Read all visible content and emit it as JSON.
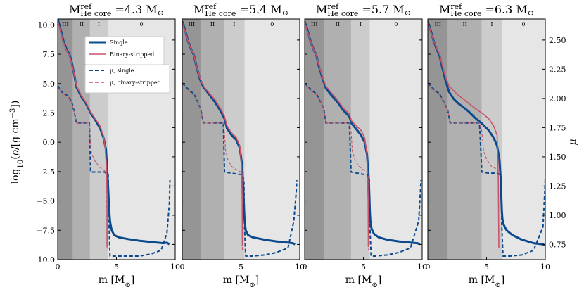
{
  "chart_data": {
    "type": "line",
    "layout": "1x4 panels, shared y axis (left) and twin right axis",
    "ylabel_left": "log10(ρ / [g cm^-3])",
    "ylabel_right": "μ",
    "xlabel": "m [M_⊙]",
    "xlabel_parts": {
      "main": "m [M",
      "sub": "⊙",
      "close": "]"
    },
    "ylim_left": [
      -10,
      10.5
    ],
    "ylim_right": [
      0.62,
      2.68
    ],
    "xlim": [
      0,
      10
    ],
    "x_ticks": [
      0,
      5,
      10
    ],
    "y_ticks_left": [
      -10.0,
      -7.5,
      -5.0,
      -2.5,
      0.0,
      2.5,
      5.0,
      7.5,
      10.0
    ],
    "y_ticks_left_labels": [
      "−10.0",
      "−7.5",
      "−5.0",
      "−2.5",
      "0.0",
      "2.5",
      "5.0",
      "7.5",
      "10.0"
    ],
    "y_ticks_right": [
      0.75,
      1.0,
      1.25,
      1.5,
      1.75,
      2.0,
      2.25,
      2.5
    ],
    "y_ticks_right_labels": [
      "0.75",
      "1.00",
      "1.25",
      "1.50",
      "1.75",
      "2.00",
      "2.25",
      "2.50"
    ],
    "zone_labels": [
      "III",
      "II",
      "I",
      "0"
    ],
    "zone_colors": [
      "#959595",
      "#b0b0b0",
      "#cccccc",
      "#e6e6e6"
    ],
    "legend": {
      "placement": "upper-right of first panel",
      "entries": [
        {
          "label": "Single",
          "color": "#0b4a8c",
          "style": "solid-thick"
        },
        {
          "label": "Binary-stripped",
          "color": "#c9546a",
          "style": "solid"
        }
      ],
      "entries_mu": [
        {
          "label": "μ, single",
          "color": "#0b4a8c",
          "style": "dashed"
        },
        {
          "label": "μ, binary-stripped",
          "color": "#c9546a",
          "style": "dashed-thin"
        }
      ]
    },
    "panels": [
      {
        "title_main": "M",
        "title_sup": "ref",
        "title_sub": "He core",
        "title_value": "=4.3 M",
        "title_odot": "⊙",
        "zone_edges": [
          0,
          1.3,
          2.75,
          4.25,
          10
        ],
        "series": [
          {
            "name": "Single",
            "axis": "left",
            "x": [
              0,
              0.2,
              0.5,
              0.8,
              1.0,
              1.2,
              1.4,
              1.6,
              2.0,
              2.4,
              2.8,
              3.2,
              3.6,
              3.9,
              4.1,
              4.2,
              4.3,
              4.35,
              4.4,
              4.45,
              4.5,
              4.6,
              4.8,
              5.2,
              6,
              7,
              8,
              9,
              9.3,
              9.5
            ],
            "y": [
              10.5,
              9.8,
              8.6,
              7.8,
              7.5,
              6.8,
              5.8,
              4.7,
              3.9,
              3.3,
              2.5,
              1.9,
              1.2,
              0.4,
              -0.6,
              -2.0,
              -4.0,
              -5.0,
              -6.0,
              -6.7,
              -7.0,
              -7.5,
              -7.9,
              -8.1,
              -8.25,
              -8.4,
              -8.5,
              -8.6,
              -8.55,
              -8.7
            ]
          },
          {
            "name": "Binary-stripped",
            "axis": "left",
            "x": [
              0,
              0.2,
              0.5,
              0.8,
              1.0,
              1.2,
              1.4,
              1.6,
              2.0,
              2.4,
              2.8,
              3.2,
              3.6,
              3.9,
              4.05,
              4.15,
              4.2,
              4.2
            ],
            "y": [
              10.3,
              9.6,
              8.5,
              7.7,
              7.4,
              6.7,
              5.8,
              4.8,
              4.0,
              3.4,
              2.6,
              2.0,
              1.4,
              0.5,
              -0.5,
              -2.0,
              -4.5,
              -8.9
            ]
          },
          {
            "name": "μ, single",
            "axis": "right",
            "x": [
              0,
              0.3,
              0.6,
              0.9,
              1.2,
              1.35,
              1.6,
              2.0,
              2.5,
              2.7,
              2.8,
              3.4,
              4.0,
              4.1,
              4.3,
              4.35,
              4.45,
              4.6,
              5,
              6,
              7,
              8,
              8.8,
              9.3,
              9.5,
              9.55
            ],
            "y": [
              2.11,
              2.06,
              2.04,
              2.02,
              1.97,
              1.91,
              1.79,
              1.79,
              1.79,
              1.79,
              1.37,
              1.37,
              1.37,
              1.36,
              1.35,
              1.0,
              0.65,
              0.65,
              0.65,
              0.65,
              0.65,
              0.67,
              0.7,
              0.85,
              1.1,
              1.3
            ]
          },
          {
            "name": "μ, binary-stripped",
            "axis": "right",
            "x": [
              0,
              0.3,
              0.6,
              0.9,
              1.2,
              1.35,
              1.6,
              2.0,
              2.5,
              2.7,
              2.75,
              2.85,
              3.0,
              3.2,
              3.6,
              4.0,
              4.15,
              4.2
            ],
            "y": [
              2.09,
              2.05,
              2.03,
              2.01,
              1.96,
              1.9,
              1.79,
              1.79,
              1.79,
              1.79,
              1.66,
              1.55,
              1.5,
              1.46,
              1.41,
              1.38,
              1.36,
              0.7
            ]
          }
        ]
      },
      {
        "title_main": "M",
        "title_sup": "ref",
        "title_sub": "He core",
        "title_value": "=5.4 M",
        "title_odot": "⊙",
        "zone_edges": [
          0,
          1.6,
          3.55,
          5.3,
          10
        ],
        "series": [
          {
            "name": "Single",
            "axis": "left",
            "x": [
              0,
              0.2,
              0.5,
              0.8,
              1.0,
              1.2,
              1.5,
              1.8,
              2.2,
              2.8,
              3.3,
              3.6,
              3.8,
              4.2,
              4.6,
              4.9,
              5.1,
              5.2,
              5.25,
              5.3,
              5.35,
              5.4,
              5.6,
              6,
              7,
              8,
              9,
              9.4,
              9.6
            ],
            "y": [
              10.3,
              9.7,
              8.6,
              7.8,
              7.4,
              6.5,
              5.4,
              4.7,
              4.2,
              3.4,
              2.6,
              2.0,
              1.2,
              0.6,
              0.2,
              -0.5,
              -2.0,
              -4.0,
              -5.5,
              -6.5,
              -7.0,
              -7.5,
              -7.9,
              -8.1,
              -8.3,
              -8.45,
              -8.55,
              -8.6,
              -8.7
            ]
          },
          {
            "name": "Binary-stripped",
            "axis": "left",
            "x": [
              0,
              0.2,
              0.5,
              0.8,
              1.0,
              1.2,
              1.5,
              1.8,
              2.2,
              2.8,
              3.3,
              3.6,
              3.8,
              4.2,
              4.6,
              4.9,
              5.05,
              5.1,
              5.12
            ],
            "y": [
              10.2,
              9.6,
              8.6,
              7.8,
              7.4,
              6.5,
              5.5,
              4.8,
              4.3,
              3.6,
              2.8,
              2.2,
              1.4,
              0.8,
              0.4,
              -0.3,
              -2.0,
              -5.0,
              -8.8
            ]
          },
          {
            "name": "μ, single",
            "axis": "right",
            "x": [
              0,
              0.3,
              0.6,
              1.0,
              1.4,
              1.6,
              1.8,
              2.4,
              3.2,
              3.5,
              3.6,
              4.2,
              4.8,
              5.1,
              5.25,
              5.3,
              5.4,
              6,
              7,
              8,
              9,
              9.5,
              9.7,
              9.75
            ],
            "y": [
              2.13,
              2.1,
              2.07,
              2.04,
              1.95,
              1.9,
              1.79,
              1.79,
              1.79,
              1.79,
              1.37,
              1.36,
              1.35,
              1.35,
              1.3,
              0.9,
              0.65,
              0.65,
              0.66,
              0.68,
              0.72,
              0.95,
              1.2,
              1.3
            ]
          },
          {
            "name": "μ, binary-stripped",
            "axis": "right",
            "x": [
              0,
              0.3,
              0.6,
              1.0,
              1.4,
              1.6,
              1.8,
              2.4,
              3.2,
              3.5,
              3.6,
              3.7,
              3.9,
              4.2,
              4.6,
              5.0,
              5.1,
              5.12
            ],
            "y": [
              2.12,
              2.09,
              2.06,
              2.03,
              1.95,
              1.9,
              1.79,
              1.79,
              1.79,
              1.79,
              1.7,
              1.55,
              1.47,
              1.42,
              1.39,
              1.37,
              1.35,
              0.7
            ]
          }
        ]
      },
      {
        "title_main": "M",
        "title_sup": "ref",
        "title_sub": "He core",
        "title_value": "=5.7 M",
        "title_odot": "⊙",
        "zone_edges": [
          0,
          1.65,
          3.95,
          5.55,
          10
        ],
        "series": [
          {
            "name": "Single",
            "axis": "left",
            "x": [
              0,
              0.2,
              0.5,
              0.8,
              1.0,
              1.2,
              1.5,
              1.8,
              2.2,
              2.8,
              3.3,
              3.8,
              4.0,
              4.4,
              4.8,
              5.1,
              5.3,
              5.45,
              5.5,
              5.55,
              5.6,
              5.7,
              5.9,
              6.3,
              7,
              8,
              9,
              9.6,
              9.8
            ],
            "y": [
              10.3,
              9.7,
              8.6,
              7.8,
              7.4,
              6.5,
              5.5,
              4.6,
              4.1,
              3.4,
              2.7,
              2.2,
              1.6,
              1.1,
              0.6,
              0.0,
              -1.0,
              -3.0,
              -4.5,
              -6.0,
              -6.8,
              -7.4,
              -7.8,
              -8.1,
              -8.3,
              -8.45,
              -8.55,
              -8.6,
              -8.7
            ]
          },
          {
            "name": "Binary-stripped",
            "axis": "left",
            "x": [
              0,
              0.2,
              0.5,
              0.8,
              1.0,
              1.2,
              1.5,
              1.8,
              2.2,
              2.8,
              3.3,
              3.8,
              4.0,
              4.4,
              4.8,
              5.1,
              5.3,
              5.4,
              5.42
            ],
            "y": [
              10.2,
              9.6,
              8.6,
              7.8,
              7.4,
              6.6,
              5.6,
              4.8,
              4.3,
              3.6,
              2.9,
              2.4,
              1.8,
              1.4,
              1.0,
              0.4,
              -1.0,
              -5.0,
              -8.9
            ]
          },
          {
            "name": "μ, single",
            "axis": "right",
            "x": [
              0,
              0.3,
              0.6,
              1.0,
              1.4,
              1.65,
              1.8,
              2.6,
              3.4,
              3.8,
              3.95,
              4.5,
              5.0,
              5.3,
              5.5,
              5.55,
              5.65,
              6,
              7,
              8,
              9,
              9.7,
              9.85,
              9.9
            ],
            "y": [
              2.13,
              2.1,
              2.07,
              2.04,
              1.96,
              1.9,
              1.79,
              1.79,
              1.79,
              1.79,
              1.37,
              1.36,
              1.35,
              1.35,
              1.3,
              0.9,
              0.65,
              0.65,
              0.66,
              0.68,
              0.72,
              0.95,
              1.2,
              1.3
            ]
          },
          {
            "name": "μ, binary-stripped",
            "axis": "right",
            "x": [
              0,
              0.3,
              0.6,
              1.0,
              1.4,
              1.65,
              1.8,
              2.6,
              3.4,
              3.8,
              3.95,
              4.05,
              4.3,
              4.6,
              5.0,
              5.3,
              5.4,
              5.42
            ],
            "y": [
              2.12,
              2.09,
              2.06,
              2.03,
              1.96,
              1.9,
              1.79,
              1.79,
              1.79,
              1.79,
              1.72,
              1.55,
              1.47,
              1.42,
              1.39,
              1.37,
              1.35,
              0.7
            ]
          }
        ]
      },
      {
        "title_main": "M",
        "title_sup": "ref",
        "title_sub": "He core",
        "title_value": "=6.3 M",
        "title_odot": "⊙",
        "zone_edges": [
          0,
          1.7,
          4.6,
          6.3,
          10
        ],
        "series": [
          {
            "name": "Single",
            "axis": "left",
            "x": [
              0,
              0.2,
              0.5,
              0.8,
              1.0,
              1.2,
              1.5,
              1.8,
              2.2,
              2.6,
              3.0,
              3.5,
              4.0,
              4.6,
              5.2,
              5.6,
              5.9,
              6.1,
              6.2,
              6.25,
              6.3,
              6.35,
              6.45,
              6.7,
              7.2,
              8,
              9,
              9.8,
              10.0
            ],
            "y": [
              10.3,
              9.7,
              8.6,
              7.8,
              7.4,
              6.5,
              5.3,
              4.3,
              3.7,
              3.3,
              3.0,
              2.6,
              2.1,
              1.6,
              1.0,
              0.4,
              -0.3,
              -1.5,
              -3.0,
              -4.5,
              -5.8,
              -6.5,
              -7.0,
              -7.5,
              -7.9,
              -8.3,
              -8.6,
              -8.7,
              -8.8
            ]
          },
          {
            "name": "Binary-stripped",
            "axis": "left",
            "x": [
              0,
              0.2,
              0.5,
              0.8,
              1.0,
              1.2,
              1.5,
              1.8,
              2.2,
              2.6,
              3.0,
              3.5,
              4.0,
              4.6,
              5.2,
              5.6,
              5.9,
              6.0,
              6.05
            ],
            "y": [
              10.2,
              9.6,
              8.6,
              7.9,
              7.5,
              6.7,
              5.6,
              4.8,
              4.4,
              4.0,
              3.7,
              3.3,
              2.9,
              2.5,
              2.0,
              1.4,
              0.6,
              -3.0,
              -9.0
            ]
          },
          {
            "name": "μ, single",
            "axis": "right",
            "x": [
              0,
              0.3,
              0.6,
              1.0,
              1.4,
              1.7,
              1.9,
              2.8,
              3.8,
              4.4,
              4.6,
              5.2,
              5.8,
              6.1,
              6.25,
              6.3,
              6.4,
              7,
              8,
              9,
              9.8,
              9.95,
              10.0
            ],
            "y": [
              2.13,
              2.1,
              2.07,
              2.04,
              1.96,
              1.9,
              1.79,
              1.79,
              1.79,
              1.79,
              1.37,
              1.36,
              1.36,
              1.35,
              1.3,
              0.9,
              0.65,
              0.65,
              0.66,
              0.7,
              0.9,
              1.2,
              1.32
            ]
          },
          {
            "name": "μ, binary-stripped",
            "axis": "right",
            "x": [
              0,
              0.3,
              0.6,
              1.0,
              1.4,
              1.7,
              1.9,
              2.8,
              3.8,
              4.4,
              4.6,
              4.75,
              5.0,
              5.4,
              5.8,
              5.95,
              6.0,
              6.05
            ],
            "y": [
              2.12,
              2.09,
              2.06,
              2.03,
              1.96,
              1.9,
              1.79,
              1.79,
              1.79,
              1.79,
              1.72,
              1.55,
              1.48,
              1.42,
              1.4,
              1.38,
              1.36,
              0.72
            ]
          }
        ]
      }
    ]
  }
}
